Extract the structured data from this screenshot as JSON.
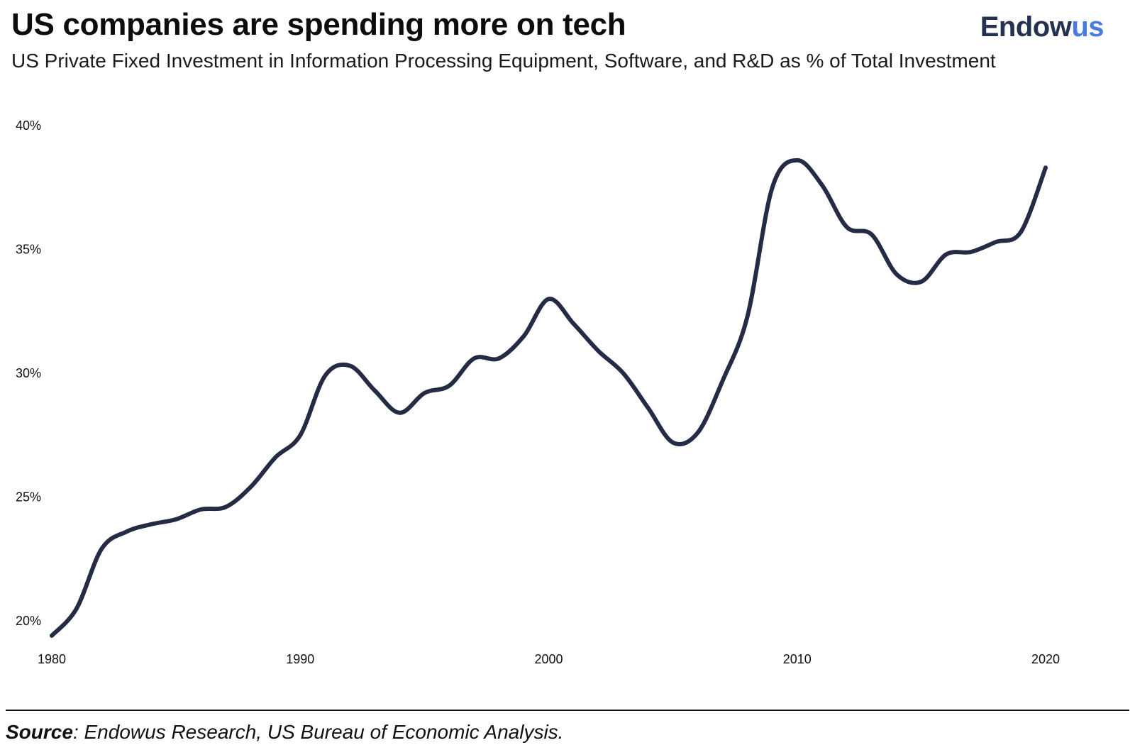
{
  "header": {
    "title": "US companies are spending more on tech",
    "subtitle": "US Private Fixed Investment in Information Processing Equipment, Software, and R&D as % of Total Investment"
  },
  "logo": {
    "part1": "Endow",
    "part2": "us",
    "color1": "#243151",
    "color2": "#4a7ce0"
  },
  "footer": {
    "source_label": "Source",
    "source_text": ": Endowus Research, US Bureau of Economic Analysis."
  },
  "chart_data": {
    "type": "line",
    "title": "US companies are spending more on tech",
    "xlabel": "",
    "ylabel": "",
    "xlim": [
      1980,
      2020.5
    ],
    "ylim": [
      19.2,
      40.3
    ],
    "x_ticks": [
      1980,
      1990,
      2000,
      2010,
      2020
    ],
    "x_tick_labels": [
      "1980",
      "1990",
      "2000",
      "2010",
      "2020"
    ],
    "y_ticks": [
      20,
      25,
      30,
      35,
      40
    ],
    "y_tick_labels": [
      "20%",
      "25%",
      "30%",
      "35%",
      "40%"
    ],
    "grid": false,
    "line_color": "#232c44",
    "series": [
      {
        "x": [
          1980,
          1981,
          1982,
          1983,
          1984,
          1985,
          1986,
          1987,
          1988,
          1989,
          1990,
          1991,
          1992,
          1993,
          1994,
          1995,
          1996,
          1997,
          1998,
          1999,
          2000,
          2001,
          2002,
          2003,
          2004,
          2005,
          2006,
          2007,
          2008,
          2009,
          2010,
          2011,
          2012,
          2013,
          2014,
          2015,
          2016,
          2017,
          2018,
          2019,
          2020
        ],
        "values": [
          19.4,
          20.5,
          22.9,
          23.6,
          23.9,
          24.1,
          24.5,
          24.6,
          25.4,
          26.6,
          27.5,
          29.9,
          30.3,
          29.3,
          28.4,
          29.2,
          29.5,
          30.6,
          30.6,
          31.5,
          33.0,
          32.0,
          30.9,
          30.0,
          28.6,
          27.2,
          27.6,
          29.7,
          32.3,
          37.5,
          38.6,
          37.6,
          35.9,
          35.6,
          34.0,
          33.7,
          34.8,
          34.9,
          35.3,
          35.7,
          38.3
        ]
      }
    ]
  }
}
